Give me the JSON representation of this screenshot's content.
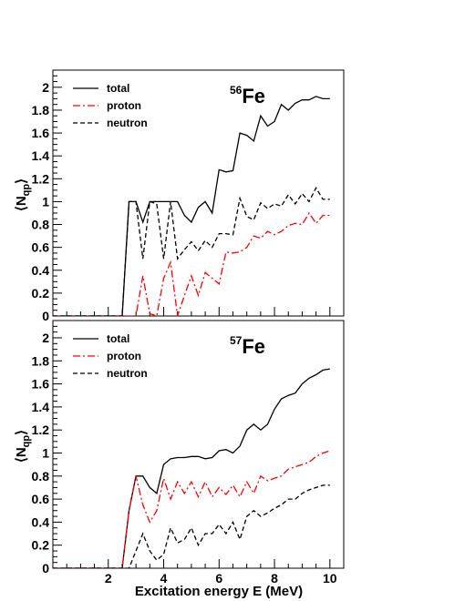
{
  "chart_data": [
    {
      "type": "line",
      "title": "",
      "nucleus": {
        "mass": "56",
        "symbol": "Fe"
      },
      "xlabel": "",
      "ylabel": "⟨N",
      "ylabel_sub": "qp",
      "ylabel_close": "⟩",
      "xlim": [
        0,
        10.5
      ],
      "ylim": [
        0,
        2.15
      ],
      "yticks": [
        "0",
        "0.2",
        "0.4",
        "0.6",
        "0.8",
        "1",
        "1.2",
        "1.4",
        "1.6",
        "1.8",
        "2"
      ],
      "xticks": [],
      "legend": "top-left",
      "series": [
        {
          "name": "total",
          "color": "#000000",
          "dash": "solid",
          "x": [
            0,
            0.5,
            1,
            1.5,
            2,
            2.5,
            2.75,
            3,
            3.25,
            3.5,
            3.75,
            4,
            4.25,
            4.5,
            4.75,
            5,
            5.25,
            5.5,
            5.75,
            6,
            6.25,
            6.5,
            6.75,
            7,
            7.25,
            7.5,
            7.75,
            8,
            8.25,
            8.5,
            8.75,
            9,
            9.25,
            9.5,
            9.75,
            10
          ],
          "y": [
            0,
            0,
            0,
            0,
            0,
            0,
            1.0,
            1.0,
            0.82,
            1.0,
            1.0,
            1.0,
            1.0,
            1.0,
            0.88,
            0.82,
            0.95,
            1.0,
            0.9,
            1.28,
            1.26,
            1.27,
            1.6,
            1.58,
            1.53,
            1.75,
            1.66,
            1.7,
            1.85,
            1.8,
            1.86,
            1.89,
            1.89,
            1.92,
            1.9,
            1.9
          ]
        },
        {
          "name": "proton",
          "color": "#ff0000",
          "dash": "dashdot",
          "x": [
            0,
            0.5,
            1,
            1.5,
            2,
            2.5,
            3,
            3.25,
            3.5,
            3.75,
            4,
            4.25,
            4.5,
            4.75,
            5,
            5.25,
            5.5,
            5.75,
            6,
            6.25,
            6.5,
            6.75,
            7,
            7.25,
            7.5,
            7.75,
            8,
            8.25,
            8.5,
            8.75,
            9,
            9.25,
            9.5,
            9.75,
            10
          ],
          "y": [
            0,
            0,
            0,
            0,
            0,
            0,
            0,
            0.35,
            0.02,
            0.0,
            0.33,
            0.47,
            0.0,
            0.18,
            0.35,
            0.18,
            0.38,
            0.33,
            0.28,
            0.56,
            0.55,
            0.56,
            0.6,
            0.7,
            0.68,
            0.74,
            0.71,
            0.74,
            0.79,
            0.81,
            0.8,
            0.9,
            0.81,
            0.88,
            0.88
          ]
        },
        {
          "name": "neutron",
          "color": "#000000",
          "dash": "dashed",
          "x": [
            0,
            0.5,
            1,
            1.5,
            2,
            2.5,
            2.75,
            3,
            3.25,
            3.5,
            3.75,
            4,
            4.25,
            4.5,
            4.75,
            5,
            5.25,
            5.5,
            5.75,
            6,
            6.25,
            6.5,
            6.75,
            7,
            7.25,
            7.5,
            7.75,
            8,
            8.25,
            8.5,
            8.75,
            9,
            9.25,
            9.5,
            9.75,
            10
          ],
          "y": [
            0,
            0,
            0,
            0,
            0,
            0,
            1.0,
            1.0,
            0.5,
            1.0,
            0.98,
            0.5,
            1.0,
            0.5,
            0.58,
            0.65,
            0.57,
            0.66,
            0.6,
            0.72,
            0.72,
            0.71,
            1.03,
            0.87,
            0.84,
            0.99,
            0.94,
            0.98,
            0.96,
            1.06,
            0.98,
            1.07,
            1.0,
            1.12,
            1.02,
            1.02
          ]
        }
      ]
    },
    {
      "type": "line",
      "title": "",
      "nucleus": {
        "mass": "57",
        "symbol": "Fe"
      },
      "xlabel": "Excitation energy E (MeV)",
      "ylabel": "⟨N",
      "ylabel_sub": "qp",
      "ylabel_close": "⟩",
      "xlim": [
        0,
        10.5
      ],
      "ylim": [
        0,
        2.15
      ],
      "yticks": [
        "0",
        "0.2",
        "0.4",
        "0.6",
        "0.8",
        "1",
        "1.2",
        "1.4",
        "1.6",
        "1.8",
        "2"
      ],
      "xticks": [
        "2",
        "4",
        "6",
        "8",
        "10"
      ],
      "legend": "top-left",
      "series": [
        {
          "name": "total",
          "color": "#000000",
          "dash": "solid",
          "x": [
            0,
            0.5,
            1,
            1.5,
            2,
            2.5,
            2.75,
            3,
            3.25,
            3.5,
            3.75,
            4,
            4.25,
            4.5,
            4.75,
            5,
            5.25,
            5.5,
            5.75,
            6,
            6.25,
            6.5,
            6.75,
            7,
            7.25,
            7.5,
            7.75,
            8,
            8.25,
            8.5,
            8.75,
            9,
            9.25,
            9.5,
            9.75,
            10
          ],
          "y": [
            0,
            0,
            0,
            0,
            0,
            0,
            0.5,
            0.8,
            0.8,
            0.7,
            0.65,
            0.9,
            0.95,
            0.96,
            0.96,
            0.97,
            0.97,
            0.95,
            0.96,
            1.02,
            1.03,
            1.0,
            1.06,
            1.2,
            1.25,
            1.2,
            1.25,
            1.38,
            1.47,
            1.5,
            1.52,
            1.6,
            1.65,
            1.68,
            1.72,
            1.73
          ]
        },
        {
          "name": "proton",
          "color": "#ff0000",
          "dash": "dashdot",
          "x": [
            0,
            0.5,
            1,
            1.5,
            2,
            2.5,
            2.75,
            3,
            3.25,
            3.5,
            3.75,
            4,
            4.25,
            4.5,
            4.75,
            5,
            5.25,
            5.5,
            5.75,
            6,
            6.25,
            6.5,
            6.75,
            7,
            7.25,
            7.5,
            7.75,
            8,
            8.25,
            8.5,
            8.75,
            9,
            9.25,
            9.5,
            9.75,
            10
          ],
          "y": [
            0,
            0,
            0,
            0,
            0,
            0,
            0.5,
            0.8,
            0.55,
            0.4,
            0.5,
            0.78,
            0.6,
            0.75,
            0.65,
            0.75,
            0.62,
            0.75,
            0.62,
            0.7,
            0.64,
            0.72,
            0.62,
            0.75,
            0.65,
            0.8,
            0.76,
            0.78,
            0.8,
            0.86,
            0.88,
            0.9,
            0.92,
            0.97,
            1.0,
            1.02
          ]
        },
        {
          "name": "neutron",
          "color": "#000000",
          "dash": "dashed",
          "x": [
            0,
            0.5,
            1,
            1.5,
            2,
            2.5,
            2.75,
            3,
            3.25,
            3.5,
            3.75,
            4,
            4.25,
            4.5,
            4.75,
            5,
            5.25,
            5.5,
            5.75,
            6,
            6.25,
            6.5,
            6.75,
            7,
            7.25,
            7.5,
            7.75,
            8,
            8.25,
            8.5,
            8.75,
            9,
            9.25,
            9.5,
            9.75,
            10
          ],
          "y": [
            0,
            0,
            0,
            0,
            0,
            0,
            0.0,
            0.15,
            0.3,
            0.15,
            0.07,
            0.12,
            0.35,
            0.22,
            0.25,
            0.35,
            0.2,
            0.3,
            0.3,
            0.38,
            0.3,
            0.4,
            0.25,
            0.45,
            0.5,
            0.45,
            0.48,
            0.52,
            0.55,
            0.6,
            0.6,
            0.65,
            0.68,
            0.7,
            0.72,
            0.72
          ]
        }
      ]
    }
  ]
}
